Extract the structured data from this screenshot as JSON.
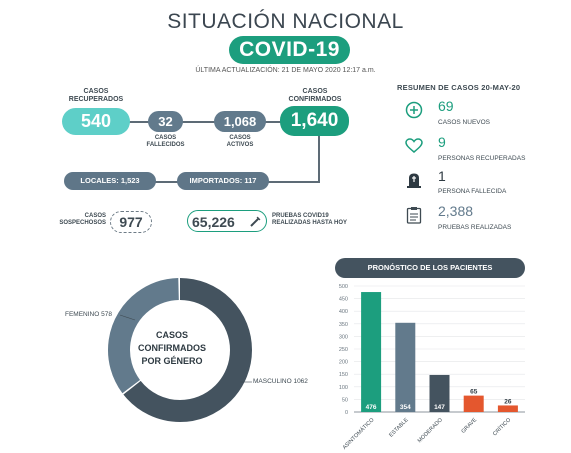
{
  "header": {
    "title": "SITUACIÓN NACIONAL",
    "subtitle": "COVID-19",
    "updated": "ÚLTIMA ACTUALIZACIÓN: 21 DE MAYO 2020 12:17 a.m."
  },
  "stats": {
    "recuperados": {
      "label_1": "CASOS",
      "label_2": "RECUPERADOS",
      "value": "540"
    },
    "fallecidos": {
      "value": "32",
      "label_1": "CASOS",
      "label_2": "FALLECIDOS"
    },
    "activos": {
      "value": "1,068",
      "label_1": "CASOS",
      "label_2": "ACTIVOS"
    },
    "confirmados": {
      "label_1": "CASOS",
      "label_2": "CONFIRMADOS",
      "value": "1,640"
    },
    "locales": "LOCALES: 1,523",
    "importados": "IMPORTADOS: 117",
    "sospechosos": {
      "label_1": "CASOS",
      "label_2": "SOSPECHOSOS",
      "value": "977"
    },
    "pruebas": {
      "value": "65,226",
      "label_1": "PRUEBAS COVID19",
      "label_2": "REALIZADAS HASTA HOY"
    }
  },
  "resumen": {
    "title": "RESUMEN DE CASOS 20-MAY-20",
    "items": [
      {
        "icon": "plus-circle-icon",
        "value": "69",
        "label": "CASOS NUEVOS"
      },
      {
        "icon": "heart-icon",
        "value": "9",
        "label": "PERSONAS RECUPERADAS"
      },
      {
        "icon": "tombstone-icon",
        "value": "1",
        "label": "PERSONA FALLECIDA"
      },
      {
        "icon": "clipboard-icon",
        "value": "2,388",
        "label": "PRUEBAS REALIZADAS"
      }
    ]
  },
  "colors": {
    "green": "#1c9e7e",
    "teal": "#5ecfc8",
    "slate": "#627a8c",
    "dark": "#44535f",
    "orange": "#e4572e"
  },
  "chart_data": [
    {
      "type": "pie",
      "donut": true,
      "center_text": [
        "CASOS",
        "CONFIRMADOS",
        "POR GÉNERO"
      ],
      "labels": [
        "FEMENINO 578",
        "MASCULINO 1062"
      ],
      "values": [
        578,
        1062
      ],
      "colors": [
        "#627a8c",
        "#44535f"
      ]
    },
    {
      "type": "bar",
      "title": "PRONÓSTICO DE LOS PACIENTES",
      "categories": [
        "ASINTOMÁTICO",
        "ESTABLE",
        "MODERADO",
        "GRAVE",
        "CRÍTICO"
      ],
      "values": [
        476,
        354,
        147,
        65,
        26
      ],
      "colors": [
        "#1c9e7e",
        "#627a8c",
        "#44535f",
        "#e4572e",
        "#e4572e"
      ],
      "ylim": [
        0,
        500
      ],
      "yticks": [
        0,
        50,
        100,
        150,
        200,
        250,
        300,
        350,
        400,
        450,
        500
      ],
      "grid": true
    }
  ]
}
